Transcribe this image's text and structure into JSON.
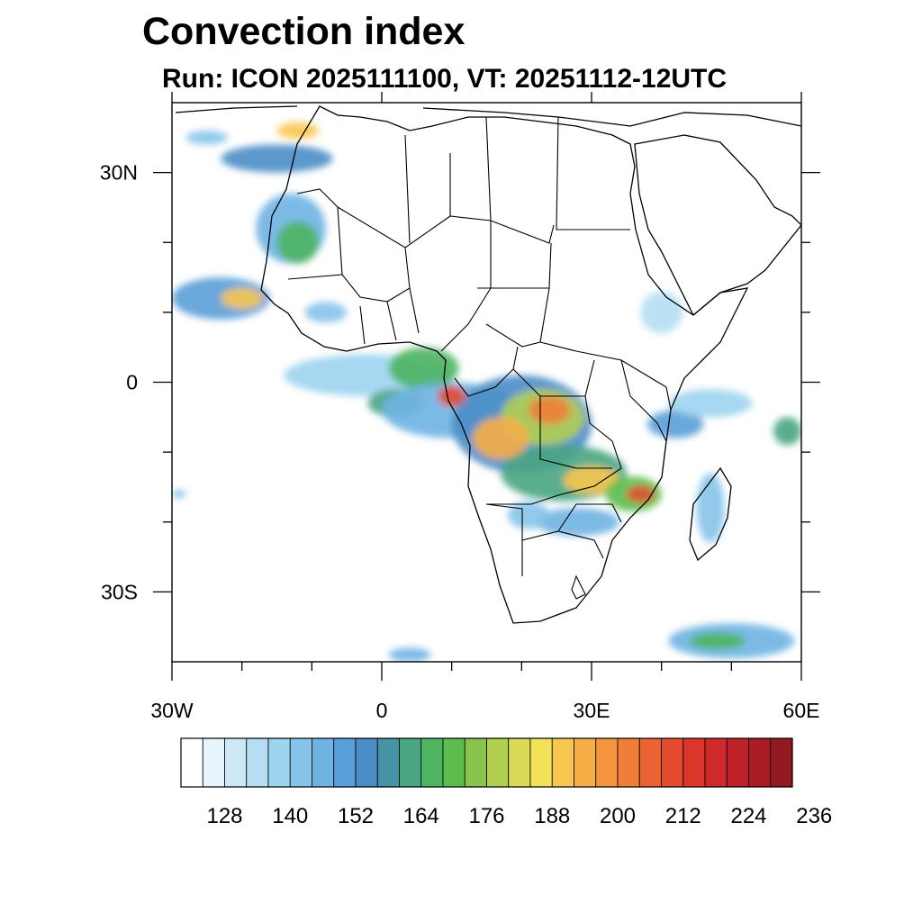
{
  "title": "Convection index",
  "subtitle": "Run: ICON 2025111100,  VT: 20251112-12UTC",
  "map": {
    "lon_range": [
      -30,
      60
    ],
    "lat_range": [
      -40,
      40
    ],
    "lon_ticks": [
      {
        "value": -30,
        "label": "30W"
      },
      {
        "value": 0,
        "label": "0"
      },
      {
        "value": 30,
        "label": "30E"
      },
      {
        "value": 60,
        "label": "60E"
      }
    ],
    "lat_ticks": [
      {
        "value": 30,
        "label": "30N"
      },
      {
        "value": 0,
        "label": "0"
      },
      {
        "value": -30,
        "label": "30S"
      }
    ],
    "minor_lon": [
      -20,
      -10,
      10,
      20,
      40,
      50
    ],
    "minor_lat": [
      20,
      10,
      -10,
      -20
    ]
  },
  "colorbar": {
    "colors": [
      "#ffffff",
      "#e8f4fb",
      "#cde9f6",
      "#b5def3",
      "#9dd4f0",
      "#86c4ea",
      "#6fb3e3",
      "#5a9fd7",
      "#4a8dc6",
      "#4593a5",
      "#49a582",
      "#4db460",
      "#5bbd4c",
      "#8ac44e",
      "#b3cf51",
      "#d9da56",
      "#f2e25a",
      "#f8c74f",
      "#f7ae46",
      "#f5963f",
      "#f07d38",
      "#ea6332",
      "#e34c2e",
      "#dc362b",
      "#cf2a2b",
      "#bd2229",
      "#aa1c24",
      "#931a20"
    ],
    "labels": [
      "128",
      "140",
      "152",
      "164",
      "176",
      "188",
      "200",
      "212",
      "224",
      "236"
    ],
    "label_bins": [
      2,
      5,
      8,
      11,
      14,
      17,
      20,
      23,
      26,
      29
    ]
  },
  "regions": [
    {
      "lon": -23,
      "lat": 12,
      "rx": 7,
      "ry": 3,
      "level": 7
    },
    {
      "lon": -20,
      "lat": 12,
      "rx": 3,
      "ry": 1.5,
      "level": 17
    },
    {
      "lon": -13,
      "lat": 22,
      "rx": 5,
      "ry": 5,
      "level": 6
    },
    {
      "lon": -12,
      "lat": 20,
      "rx": 3,
      "ry": 3,
      "level": 11
    },
    {
      "lon": -15,
      "lat": 32,
      "rx": 8,
      "ry": 2,
      "level": 8
    },
    {
      "lon": -12,
      "lat": 36,
      "rx": 3,
      "ry": 1.2,
      "level": 17
    },
    {
      "lon": -25,
      "lat": 35,
      "rx": 3,
      "ry": 1,
      "level": 5
    },
    {
      "lon": -8,
      "lat": 10,
      "rx": 3,
      "ry": 1.5,
      "level": 5
    },
    {
      "lon": -2,
      "lat": 1,
      "rx": 12,
      "ry": 3,
      "level": 4
    },
    {
      "lon": 2,
      "lat": -3,
      "rx": 4,
      "ry": 2,
      "level": 10
    },
    {
      "lon": 6,
      "lat": 2,
      "rx": 5,
      "ry": 3,
      "level": 11
    },
    {
      "lon": 10,
      "lat": -4,
      "rx": 10,
      "ry": 4,
      "level": 6
    },
    {
      "lon": 20,
      "lat": -6,
      "rx": 10,
      "ry": 7,
      "level": 8
    },
    {
      "lon": 23,
      "lat": -5,
      "rx": 6,
      "ry": 4,
      "level": 14
    },
    {
      "lon": 24,
      "lat": -4,
      "rx": 3,
      "ry": 2,
      "level": 20
    },
    {
      "lon": 17,
      "lat": -8,
      "rx": 4,
      "ry": 3,
      "level": 18
    },
    {
      "lon": 10,
      "lat": -2,
      "rx": 2,
      "ry": 1.5,
      "level": 22
    },
    {
      "lon": 26,
      "lat": -13,
      "rx": 9,
      "ry": 4,
      "level": 10
    },
    {
      "lon": 30,
      "lat": -14,
      "rx": 4,
      "ry": 2,
      "level": 17
    },
    {
      "lon": 36,
      "lat": -16,
      "rx": 4,
      "ry": 2.5,
      "level": 12
    },
    {
      "lon": 37,
      "lat": -16,
      "rx": 2,
      "ry": 1.2,
      "level": 22
    },
    {
      "lon": 28,
      "lat": -20,
      "rx": 6,
      "ry": 2,
      "level": 6
    },
    {
      "lon": 21,
      "lat": -19,
      "rx": 3,
      "ry": 2,
      "level": 5
    },
    {
      "lon": 42,
      "lat": -6,
      "rx": 4,
      "ry": 2,
      "level": 7
    },
    {
      "lon": 47,
      "lat": -3,
      "rx": 6,
      "ry": 2,
      "level": 4
    },
    {
      "lon": 58,
      "lat": -7,
      "rx": 2,
      "ry": 2,
      "level": 10
    },
    {
      "lon": 47,
      "lat": -18,
      "rx": 2,
      "ry": 5,
      "level": 5
    },
    {
      "lon": 40,
      "lat": 10,
      "rx": 3,
      "ry": 3,
      "level": 3
    },
    {
      "lon": 50,
      "lat": -37,
      "rx": 9,
      "ry": 2.5,
      "level": 6
    },
    {
      "lon": 48,
      "lat": -37,
      "rx": 4,
      "ry": 1.2,
      "level": 11
    },
    {
      "lon": 4,
      "lat": -39,
      "rx": 3,
      "ry": 1,
      "level": 6
    },
    {
      "lon": -29,
      "lat": -16,
      "rx": 1,
      "ry": 0.6,
      "level": 5
    }
  ]
}
